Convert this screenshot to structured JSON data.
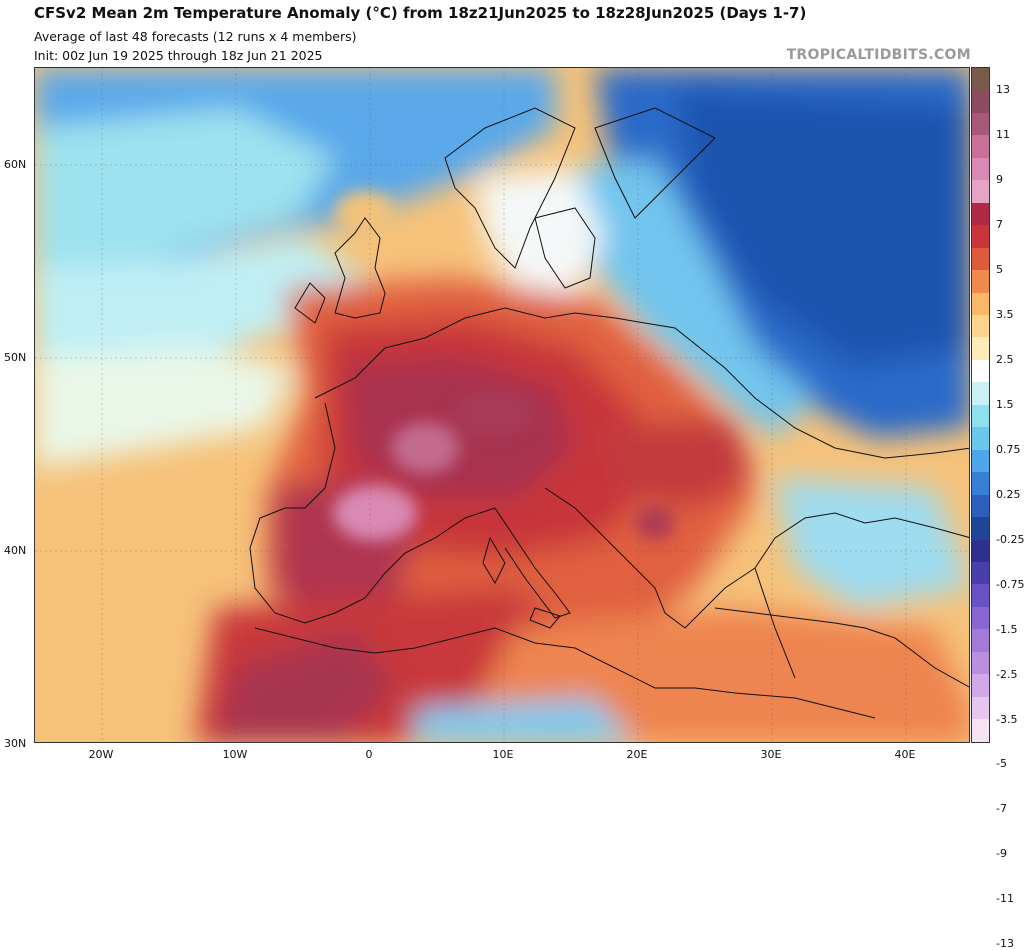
{
  "header": {
    "title": "CFSv2 Mean 2m Temperature Anomaly (°C) from 18z21Jun2025 to 18z28Jun2025 (Days 1-7)",
    "subtitle1": "Average of last 48 forecasts (12 runs x 4 members)",
    "subtitle2": "Init: 00z Jun 19 2025 through 18z Jun 21 2025",
    "credit": "TROPICALTIDBITS.COM"
  },
  "map": {
    "lat_labels": [
      "60N",
      "50N",
      "40N",
      "30N"
    ],
    "lon_labels": [
      "20W",
      "10W",
      "0",
      "10E",
      "20E",
      "30E",
      "40E"
    ],
    "lon_range": [
      -25,
      45
    ],
    "lat_range": [
      30,
      65
    ]
  },
  "colorbar": {
    "labels": [
      "13",
      "11",
      "9",
      "7",
      "5",
      "3.5",
      "2.5",
      "1.5",
      "0.75",
      "0.25",
      "-0.25",
      "-0.75",
      "-1.5",
      "-2.5",
      "-3.5",
      "-5",
      "-7",
      "-9",
      "-11",
      "-13"
    ],
    "colors": [
      "#7a5a4a",
      "#8c4b5e",
      "#a85878",
      "#c97099",
      "#d989b3",
      "#e6a3c6",
      "#b02a45",
      "#c8353a",
      "#de5a3a",
      "#f08a4f",
      "#f8b868",
      "#fbd58f",
      "#fdebb8",
      "#ffffff",
      "#c8f0f5",
      "#8fe0ee",
      "#6cc7ef",
      "#4fa6e8",
      "#3a7fd6",
      "#2d5fbd",
      "#1f4596",
      "#2f2f8e",
      "#4a3faa",
      "#6a52c4",
      "#8a66d2",
      "#a47ad9",
      "#bb8fdf",
      "#d2a8e6",
      "#e6c6ee",
      "#f5e3f4"
    ]
  }
}
